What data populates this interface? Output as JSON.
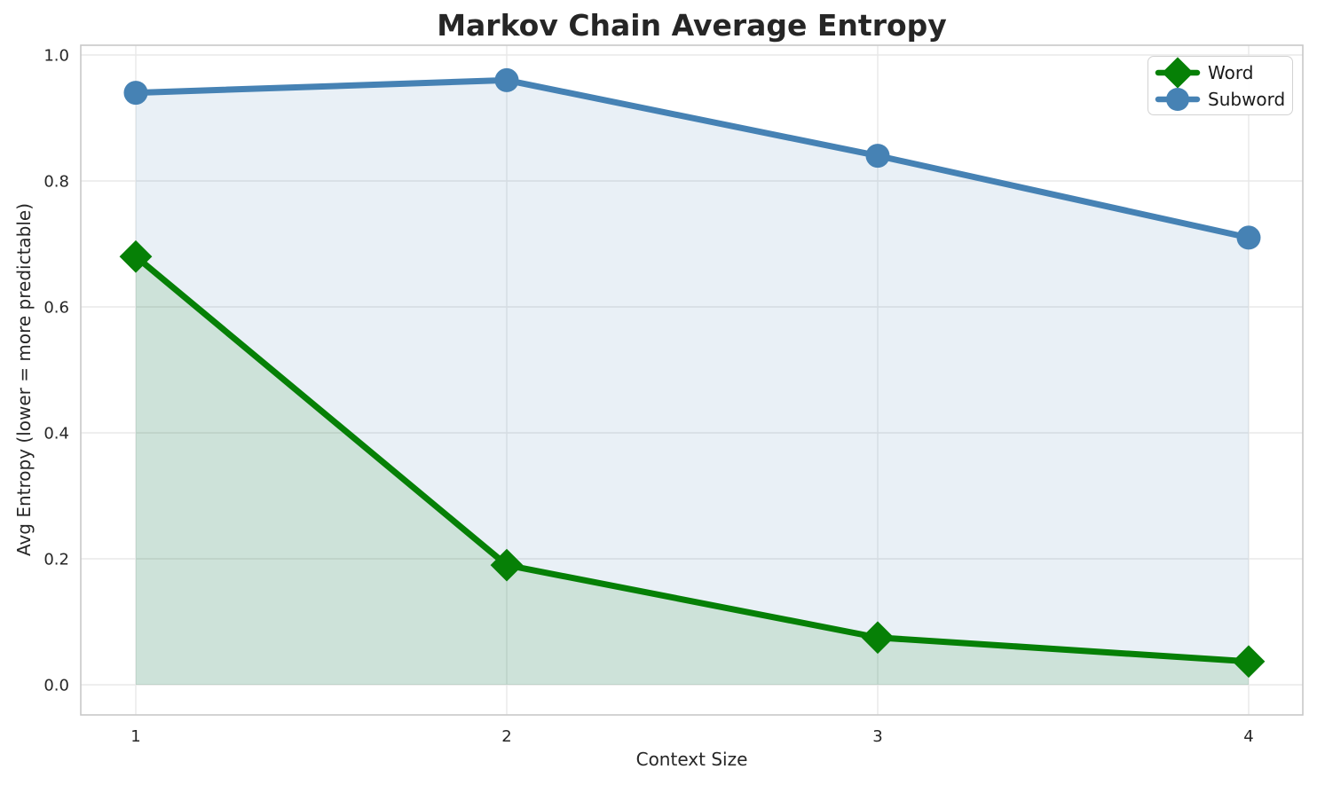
{
  "chart_data": {
    "type": "line",
    "title": "Markov Chain Average Entropy",
    "xlabel": "Context Size",
    "ylabel": "Avg Entropy (lower = more predictable)",
    "x": [
      1,
      2,
      3,
      4
    ],
    "x_tick_labels": [
      "1",
      "2",
      "3",
      "4"
    ],
    "y_ticks": [
      0.0,
      0.2,
      0.4,
      0.6,
      0.8,
      1.0
    ],
    "y_tick_labels": [
      "0.0",
      "0.2",
      "0.4",
      "0.6",
      "0.8",
      "1.0"
    ],
    "ylim": [
      0,
      1
    ],
    "grid": true,
    "legend_position": "upper right",
    "series": [
      {
        "name": "Word",
        "marker": "diamond",
        "color": "#068006",
        "fill_opacity": 0.12,
        "values": [
          0.68,
          0.19,
          0.075,
          0.037
        ]
      },
      {
        "name": "Subword",
        "marker": "circle",
        "color": "#4682B4",
        "fill_opacity": 0.12,
        "values": [
          0.94,
          0.96,
          0.84,
          0.71
        ]
      }
    ]
  },
  "palette": {
    "text": "#262626",
    "grid_line": "#e8e8e8",
    "spine": "#c8c8c8",
    "legend_border": "#d2d2d2",
    "background": "#ffffff"
  }
}
